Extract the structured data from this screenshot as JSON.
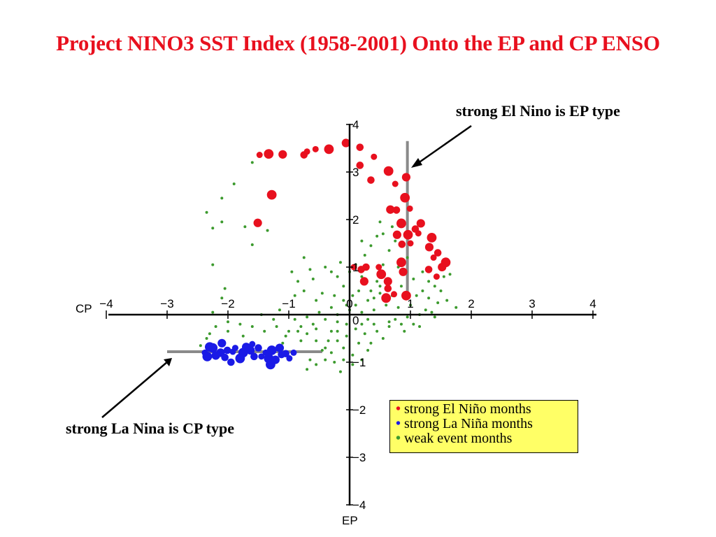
{
  "colors": {
    "title": "#e8101e",
    "red": "#e8101e",
    "blue": "#1a1ae6",
    "green": "#3c9a2e",
    "legend_bg": "#ffff66",
    "guide": "#8a8a8a"
  },
  "annotations": {
    "el_nino": "strong El Nino is EP type",
    "la_nina": "strong La Nina is CP type"
  },
  "legend": {
    "bullet": "•",
    "items": [
      {
        "label": "strong El Niño months",
        "color": "#e8101e"
      },
      {
        "label": "strong La Niña months",
        "color": "#1a1ae6"
      },
      {
        "label": "weak event months",
        "color": "#3c9a2e"
      }
    ]
  },
  "chart_data": {
    "type": "scatter",
    "title": "Project NINO3 SST Index (1958-2001) Onto the EP and CP ENSO",
    "xlabel": "CP",
    "ylabel": "EP",
    "xlim": [
      -4,
      4
    ],
    "ylim": [
      -4,
      4
    ],
    "x_ticks": [
      "−4",
      "−3",
      "−2",
      "−1",
      "0",
      "1",
      "2",
      "3",
      "4"
    ],
    "y_ticks": [
      "4",
      "3",
      "2",
      "1",
      "0",
      "−1",
      "−2",
      "−3",
      "−4"
    ],
    "guides": [
      {
        "name": "el-nino-guide",
        "x1": 0.95,
        "y1": 3.65,
        "x2": 0.95,
        "y2": 0.4
      },
      {
        "name": "la-nina-guide",
        "x1": -3.0,
        "y1": -0.78,
        "x2": -0.45,
        "y2": -0.78
      }
    ],
    "series": [
      {
        "name": "strong El Niño months",
        "color": "#e8101e",
        "points": [
          [
            -1.48,
            3.36
          ],
          [
            -1.33,
            3.38
          ],
          [
            -1.1,
            3.37
          ],
          [
            -0.75,
            3.36
          ],
          [
            -0.56,
            3.48
          ],
          [
            -0.34,
            3.48
          ],
          [
            -0.06,
            3.61
          ],
          [
            0.17,
            3.52
          ],
          [
            0.4,
            3.32
          ],
          [
            0.64,
            3.02
          ],
          [
            0.93,
            2.89
          ],
          [
            0.17,
            3.14
          ],
          [
            -0.7,
            3.43
          ],
          [
            -1.28,
            2.52
          ],
          [
            -1.51,
            1.93
          ],
          [
            0.35,
            2.83
          ],
          [
            0.75,
            2.75
          ],
          [
            0.91,
            2.46
          ],
          [
            0.67,
            2.21
          ],
          [
            0.77,
            2.2
          ],
          [
            0.99,
            2.23
          ],
          [
            0.85,
            1.92
          ],
          [
            1.17,
            1.92
          ],
          [
            1.08,
            1.8
          ],
          [
            1.13,
            1.71
          ],
          [
            0.96,
            1.68
          ],
          [
            0.78,
            1.68
          ],
          [
            0.86,
            1.48
          ],
          [
            1.0,
            1.5
          ],
          [
            1.35,
            1.62
          ],
          [
            1.31,
            1.42
          ],
          [
            1.45,
            1.3
          ],
          [
            1.38,
            1.2
          ],
          [
            1.58,
            1.1
          ],
          [
            1.52,
            1.0
          ],
          [
            1.3,
            0.95
          ],
          [
            1.43,
            0.8
          ],
          [
            0.85,
            1.1
          ],
          [
            0.88,
            0.9
          ],
          [
            0.27,
            1.0
          ],
          [
            0.48,
            1.0
          ],
          [
            0.52,
            0.85
          ],
          [
            0.63,
            0.7
          ],
          [
            0.63,
            0.55
          ],
          [
            0.73,
            0.43
          ],
          [
            0.93,
            0.4
          ],
          [
            0.24,
            0.7
          ],
          [
            0.19,
            0.95
          ],
          [
            0.07,
            1.0
          ],
          [
            0.6,
            0.35
          ]
        ]
      },
      {
        "name": "strong La Niña months",
        "color": "#1a1ae6",
        "points": [
          [
            -2.38,
            -0.8
          ],
          [
            -2.25,
            -0.7
          ],
          [
            -2.12,
            -0.8
          ],
          [
            -2.01,
            -0.75
          ],
          [
            -1.88,
            -0.7
          ],
          [
            -1.75,
            -0.8
          ],
          [
            -1.63,
            -0.75
          ],
          [
            -1.5,
            -0.7
          ],
          [
            -1.38,
            -0.8
          ],
          [
            -1.28,
            -0.75
          ],
          [
            -1.15,
            -0.7
          ],
          [
            -1.05,
            -0.82
          ],
          [
            -0.92,
            -0.8
          ],
          [
            -2.3,
            -0.68
          ],
          [
            -2.2,
            -0.86
          ],
          [
            -2.05,
            -0.9
          ],
          [
            -1.92,
            -0.78
          ],
          [
            -1.8,
            -0.92
          ],
          [
            -1.7,
            -0.68
          ],
          [
            -1.57,
            -0.88
          ],
          [
            -1.45,
            -0.88
          ],
          [
            -1.33,
            -0.92
          ],
          [
            -1.22,
            -0.95
          ],
          [
            -1.12,
            -0.84
          ],
          [
            -0.99,
            -0.92
          ],
          [
            -2.34,
            -0.88
          ],
          [
            -2.1,
            -0.6
          ],
          [
            -1.95,
            -1.0
          ],
          [
            -1.6,
            -0.62
          ],
          [
            -1.3,
            -1.05
          ]
        ]
      },
      {
        "name": "weak event months",
        "color": "#3c9a2e",
        "points": [
          [
            -1.6,
            3.2
          ],
          [
            -1.9,
            2.75
          ],
          [
            -2.1,
            2.45
          ],
          [
            -2.25,
            1.82
          ],
          [
            -1.72,
            1.85
          ],
          [
            -1.35,
            1.77
          ],
          [
            -1.6,
            1.47
          ],
          [
            -2.25,
            1.05
          ],
          [
            -2.05,
            0.55
          ],
          [
            -2.1,
            0.35
          ],
          [
            -2.25,
            0.05
          ],
          [
            -2.2,
            -0.25
          ],
          [
            -2.35,
            -0.5
          ],
          [
            -2.0,
            -0.35
          ],
          [
            -1.8,
            -0.2
          ],
          [
            -1.4,
            -0.35
          ],
          [
            -1.2,
            -0.25
          ],
          [
            -1.05,
            -0.45
          ],
          [
            -0.85,
            -0.35
          ],
          [
            -0.7,
            -0.4
          ],
          [
            -0.55,
            -0.55
          ],
          [
            -0.4,
            -0.7
          ],
          [
            -0.3,
            -0.8
          ],
          [
            -0.2,
            -0.55
          ],
          [
            -0.1,
            -0.7
          ],
          [
            -0.05,
            -0.45
          ],
          [
            -0.65,
            -0.95
          ],
          [
            -0.7,
            -1.15
          ],
          [
            -0.55,
            -1.05
          ],
          [
            -0.4,
            -0.95
          ],
          [
            -0.25,
            -1.0
          ],
          [
            -0.1,
            -0.95
          ],
          [
            0.05,
            -0.85
          ],
          [
            0.15,
            -0.6
          ],
          [
            0.2,
            -0.95
          ],
          [
            0.25,
            -0.4
          ],
          [
            0.35,
            -0.6
          ],
          [
            0.45,
            -0.35
          ],
          [
            0.55,
            -0.5
          ],
          [
            0.4,
            -0.2
          ],
          [
            0.65,
            -0.25
          ],
          [
            0.75,
            -0.1
          ],
          [
            0.85,
            -0.2
          ],
          [
            0.95,
            -0.05
          ],
          [
            1.05,
            -0.2
          ],
          [
            1.15,
            0.0
          ],
          [
            1.25,
            0.1
          ],
          [
            1.35,
            0.05
          ],
          [
            1.45,
            0.25
          ],
          [
            1.3,
            0.35
          ],
          [
            1.2,
            0.5
          ],
          [
            1.4,
            0.6
          ],
          [
            1.55,
            0.8
          ],
          [
            1.65,
            0.85
          ],
          [
            1.5,
            0.5
          ],
          [
            1.3,
            0.7
          ],
          [
            1.1,
            0.4
          ],
          [
            1.0,
            0.2
          ],
          [
            0.9,
            0.35
          ],
          [
            0.8,
            0.15
          ],
          [
            0.7,
            0.4
          ],
          [
            0.6,
            0.2
          ],
          [
            0.5,
            0.45
          ],
          [
            0.4,
            0.1
          ],
          [
            0.3,
            0.3
          ],
          [
            0.2,
            0.05
          ],
          [
            0.1,
            0.2
          ],
          [
            0.0,
            0.1
          ],
          [
            -0.1,
            0.3
          ],
          [
            -0.2,
            0.0
          ],
          [
            -0.3,
            0.15
          ],
          [
            -0.4,
            -0.1
          ],
          [
            -0.5,
            0.05
          ],
          [
            -0.6,
            -0.2
          ],
          [
            -0.7,
            -0.05
          ],
          [
            -0.8,
            -0.25
          ],
          [
            -0.9,
            -0.1
          ],
          [
            -1.0,
            -0.35
          ],
          [
            -0.6,
            0.75
          ],
          [
            -0.4,
            1.0
          ],
          [
            -0.3,
            0.9
          ],
          [
            -0.2,
            0.8
          ],
          [
            -0.1,
            0.6
          ],
          [
            -0.15,
            1.1
          ],
          [
            0.0,
            0.9
          ],
          [
            0.1,
            1.05
          ],
          [
            0.2,
            0.8
          ],
          [
            0.25,
            1.25
          ],
          [
            0.35,
            1.45
          ],
          [
            0.45,
            1.65
          ],
          [
            0.55,
            1.7
          ],
          [
            0.5,
            1.95
          ],
          [
            0.7,
            1.85
          ],
          [
            0.75,
            1.55
          ],
          [
            0.65,
            1.35
          ],
          [
            0.55,
            1.05
          ],
          [
            0.45,
            0.7
          ],
          [
            0.35,
            0.5
          ],
          [
            0.15,
            0.5
          ],
          [
            0.05,
            0.4
          ],
          [
            -0.05,
            0.2
          ],
          [
            -0.25,
            0.4
          ],
          [
            -0.45,
            0.45
          ],
          [
            -0.55,
            0.3
          ],
          [
            -0.75,
            0.5
          ],
          [
            -0.95,
            0.9
          ],
          [
            -0.85,
            0.7
          ],
          [
            -0.65,
            0.95
          ],
          [
            -2.45,
            -0.65
          ],
          [
            -2.3,
            -0.4
          ],
          [
            -2.0,
            -0.15
          ],
          [
            -1.6,
            -0.25
          ],
          [
            -1.25,
            -0.1
          ],
          [
            -0.15,
            -1.2
          ],
          [
            0.05,
            -1.05
          ],
          [
            -0.3,
            -0.35
          ],
          [
            0.3,
            -0.75
          ],
          [
            0.65,
            0.7
          ],
          [
            0.85,
            0.6
          ],
          [
            1.05,
            0.75
          ],
          [
            1.2,
            0.9
          ],
          [
            1.6,
            0.3
          ],
          [
            1.75,
            0.15
          ],
          [
            1.4,
            -0.05
          ],
          [
            1.15,
            -0.25
          ],
          [
            0.9,
            -0.35
          ],
          [
            0.65,
            -0.15
          ],
          [
            0.3,
            -0.1
          ],
          [
            0.1,
            -0.3
          ],
          [
            -0.05,
            -0.2
          ],
          [
            -0.2,
            -0.35
          ],
          [
            -0.35,
            -0.55
          ],
          [
            -0.55,
            -0.3
          ],
          [
            -0.8,
            -0.55
          ],
          [
            -1.1,
            -0.6
          ],
          [
            0.95,
            1.2
          ],
          [
            0.8,
            1.0
          ],
          [
            0.2,
            1.55
          ],
          [
            -2.35,
            2.15
          ],
          [
            -2.1,
            1.95
          ],
          [
            -0.75,
            1.2
          ],
          [
            -0.9,
            0.4
          ],
          [
            -1.15,
            0.1
          ],
          [
            -1.45,
            0.0
          ],
          [
            -1.75,
            -0.45
          ],
          [
            -0.45,
            -0.75
          ],
          [
            -0.2,
            -0.15
          ],
          [
            0.5,
            0.6
          ],
          [
            0.4,
            0.35
          ],
          [
            0.2,
            -0.2
          ]
        ]
      }
    ]
  }
}
